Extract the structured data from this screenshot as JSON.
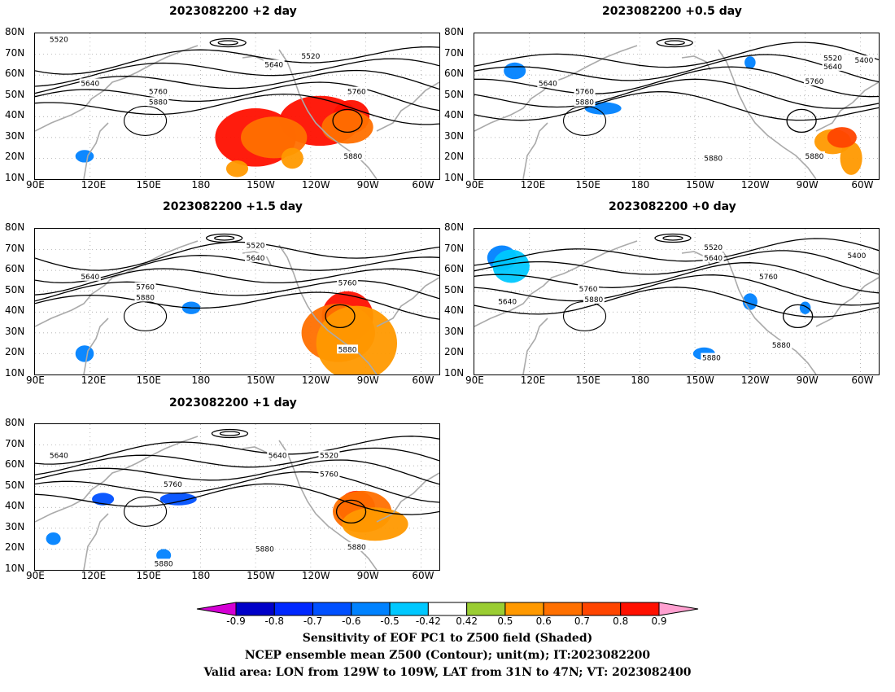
{
  "panels": [
    {
      "title": "2023082200 +2 day",
      "shading": [
        {
          "v": 0.8,
          "blobs": [
            [
              -150,
              30,
              22,
              14
            ],
            [
              -115,
              38,
              22,
              12
            ],
            [
              -98,
              40,
              10,
              8
            ]
          ]
        },
        {
          "v": 0.6,
          "blobs": [
            [
              -140,
              30,
              18,
              10
            ],
            [
              -100,
              35,
              14,
              8
            ]
          ]
        },
        {
          "v": 0.5,
          "blobs": [
            [
              -160,
              15,
              6,
              4
            ],
            [
              -130,
              20,
              6,
              5
            ]
          ]
        },
        {
          "v": -0.6,
          "blobs": [
            [
              117,
              21,
              5,
              3
            ]
          ]
        }
      ],
      "contour_labels": [
        {
          "lon": 103,
          "lat": 77,
          "text": "5520"
        },
        {
          "lon": -120,
          "lat": 69,
          "text": "5520"
        },
        {
          "lon": -140,
          "lat": 65,
          "text": "5640"
        },
        {
          "lon": 120,
          "lat": 56,
          "text": "5640"
        },
        {
          "lon": 157,
          "lat": 52,
          "text": "5760"
        },
        {
          "lon": 157,
          "lat": 47,
          "text": "5880"
        },
        {
          "lon": -95,
          "lat": 52,
          "text": "5760"
        },
        {
          "lon": -97,
          "lat": 21,
          "text": "5880"
        }
      ]
    },
    {
      "title": "2023082200 +0.5 day",
      "shading": [
        {
          "v": -0.6,
          "blobs": [
            [
              112,
              62,
              6,
              4
            ],
            [
              160,
              44,
              10,
              3
            ],
            [
              -120,
              66,
              3,
              3
            ]
          ]
        },
        {
          "v": 0.5,
          "blobs": [
            [
              -75,
              28,
              10,
              6
            ],
            [
              -65,
              20,
              6,
              8
            ]
          ]
        },
        {
          "v": 0.7,
          "blobs": [
            [
              -70,
              30,
              8,
              5
            ]
          ]
        }
      ],
      "contour_labels": [
        {
          "lon": -75,
          "lat": 68,
          "text": "5520"
        },
        {
          "lon": -58,
          "lat": 67,
          "text": "5400"
        },
        {
          "lon": -75,
          "lat": 64,
          "text": "5640"
        },
        {
          "lon": 130,
          "lat": 56,
          "text": "5640"
        },
        {
          "lon": 150,
          "lat": 52,
          "text": "5760"
        },
        {
          "lon": 150,
          "lat": 47,
          "text": "5880"
        },
        {
          "lon": -85,
          "lat": 57,
          "text": "5760"
        },
        {
          "lon": -140,
          "lat": 20,
          "text": "5880"
        },
        {
          "lon": -85,
          "lat": 21,
          "text": "5880"
        }
      ]
    },
    {
      "title": "2023082200 +1.5 day",
      "shading": [
        {
          "v": 0.8,
          "blobs": [
            [
              -100,
              38,
              14,
              12
            ]
          ]
        },
        {
          "v": 0.6,
          "blobs": [
            [
              -105,
              30,
              20,
              14
            ]
          ]
        },
        {
          "v": 0.5,
          "blobs": [
            [
              -95,
              25,
              22,
              18
            ]
          ]
        },
        {
          "v": -0.6,
          "blobs": [
            [
              117,
              20,
              5,
              4
            ],
            [
              175,
              42,
              5,
              3
            ]
          ]
        }
      ],
      "contour_labels": [
        {
          "lon": -150,
          "lat": 72,
          "text": "5520"
        },
        {
          "lon": -150,
          "lat": 66,
          "text": "5640"
        },
        {
          "lon": 120,
          "lat": 57,
          "text": "5640"
        },
        {
          "lon": 150,
          "lat": 52,
          "text": "5760"
        },
        {
          "lon": 150,
          "lat": 47,
          "text": "5880"
        },
        {
          "lon": -100,
          "lat": 54,
          "text": "5760"
        },
        {
          "lon": -100,
          "lat": 22,
          "text": "5880"
        }
      ]
    },
    {
      "title": "2023082200 +0 day",
      "shading": [
        {
          "v": -0.6,
          "blobs": [
            [
              105,
              66,
              8,
              6
            ],
            [
              -120,
              45,
              4,
              4
            ],
            [
              -90,
              42,
              3,
              3
            ],
            [
              -145,
              20,
              6,
              3
            ]
          ]
        },
        {
          "v": -0.5,
          "blobs": [
            [
              110,
              62,
              10,
              8
            ]
          ]
        }
      ],
      "contour_labels": [
        {
          "lon": -140,
          "lat": 71,
          "text": "5520"
        },
        {
          "lon": -62,
          "lat": 67,
          "text": "5400"
        },
        {
          "lon": -140,
          "lat": 66,
          "text": "5640"
        },
        {
          "lon": -110,
          "lat": 57,
          "text": "5760"
        },
        {
          "lon": 152,
          "lat": 51,
          "text": "5760"
        },
        {
          "lon": 155,
          "lat": 46,
          "text": "5880"
        },
        {
          "lon": 108,
          "lat": 45,
          "text": "5640"
        },
        {
          "lon": -141,
          "lat": 18,
          "text": "5880"
        },
        {
          "lon": -103,
          "lat": 24,
          "text": "5880"
        }
      ]
    },
    {
      "title": "2023082200 +1 day",
      "shading": [
        {
          "v": 0.8,
          "blobs": [
            [
              -95,
              40,
              10,
              8
            ]
          ]
        },
        {
          "v": 0.6,
          "blobs": [
            [
              -92,
              38,
              16,
              10
            ]
          ]
        },
        {
          "v": 0.5,
          "blobs": [
            [
              -85,
              32,
              18,
              8
            ]
          ]
        },
        {
          "v": -0.7,
          "blobs": [
            [
              127,
              44,
              6,
              3
            ],
            [
              168,
              44,
              10,
              3
            ]
          ]
        },
        {
          "v": -0.6,
          "blobs": [
            [
              100,
              25,
              4,
              3
            ],
            [
              160,
              17,
              4,
              3
            ]
          ]
        }
      ],
      "contour_labels": [
        {
          "lon": -138,
          "lat": 65,
          "text": "5640"
        },
        {
          "lon": -110,
          "lat": 65,
          "text": "5520"
        },
        {
          "lon": 103,
          "lat": 65,
          "text": "5640"
        },
        {
          "lon": -110,
          "lat": 56,
          "text": "5760"
        },
        {
          "lon": 165,
          "lat": 51,
          "text": "5760"
        },
        {
          "lon": -95,
          "lat": 21,
          "text": "5880"
        },
        {
          "lon": -145,
          "lat": 20,
          "text": "5880"
        },
        {
          "lon": 160,
          "lat": 13,
          "text": "5880"
        }
      ]
    }
  ],
  "x_ticks": [
    "90E",
    "120E",
    "150E",
    "180",
    "150W",
    "120W",
    "90W",
    "60W"
  ],
  "y_ticks": [
    "80N",
    "70N",
    "60N",
    "50N",
    "40N",
    "30N",
    "20N",
    "10N"
  ],
  "colorbar": {
    "labels": [
      "-0.9",
      "-0.8",
      "-0.7",
      "-0.6",
      "-0.5",
      "-0.42",
      "0.42",
      "0.5",
      "0.6",
      "0.7",
      "0.8",
      "0.9"
    ],
    "colors": [
      "#d400d4",
      "#0000c8",
      "#0028ff",
      "#0050ff",
      "#0082ff",
      "#00c8ff",
      "#ffffff",
      "#9acd32",
      "#ff9900",
      "#ff7000",
      "#ff4500",
      "#ff1000",
      "#ffa0d0"
    ]
  },
  "caption": {
    "line1": "Sensitivity of EOF PC1 to Z500 field (Shaded)",
    "line2": "NCEP ensemble mean Z500 (Contour); unit(m); IT:2023082200",
    "line3": "Valid area: LON from 129W to 109W, LAT from 31N to 47N; VT: 2023082400"
  },
  "chart_data": {
    "type": "heatmap",
    "panels": [
      "+2 day",
      "+0.5 day",
      "+1.5 day",
      "+0 day",
      "+1 day"
    ],
    "lon_range": [
      "90E",
      "50W"
    ],
    "lat_range": [
      "10N",
      "80N"
    ],
    "shading_levels": [
      -0.9,
      -0.8,
      -0.7,
      -0.6,
      -0.5,
      -0.42,
      0.42,
      0.5,
      0.6,
      0.7,
      0.8,
      0.9
    ],
    "contour_levels": [
      5400,
      5520,
      5640,
      5760,
      5880
    ]
  }
}
